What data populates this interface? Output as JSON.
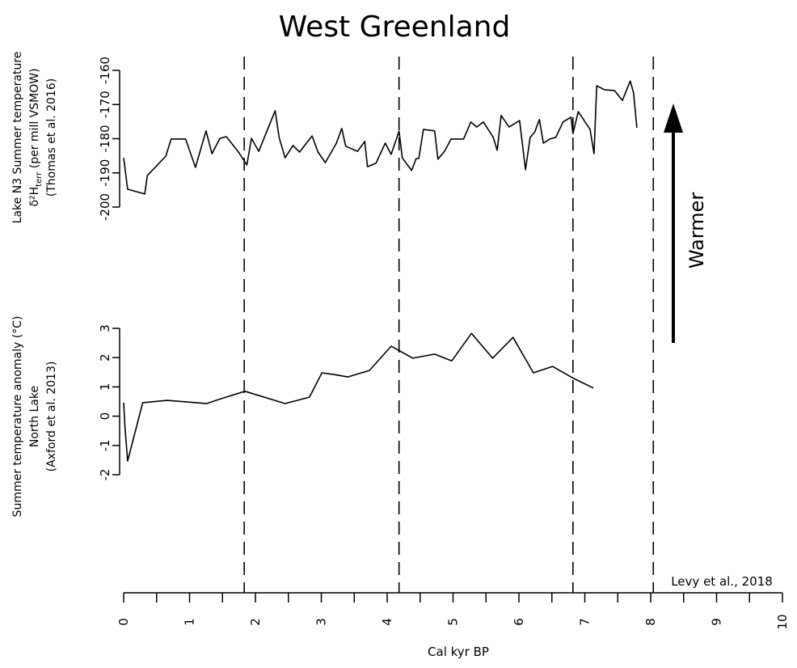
{
  "chart_data": {
    "type": "line",
    "title": "West Greenland",
    "xlabel": "Cal kyr BP",
    "xlim": [
      0,
      10
    ],
    "xticks": [
      0,
      1,
      2,
      3,
      4,
      5,
      6,
      7,
      8,
      9,
      10
    ],
    "xminor_ticks": [
      0.5,
      1.5,
      2.5,
      3.5,
      4.5,
      5.5,
      6.5,
      7.5,
      8.5,
      9.5
    ],
    "vlines": [
      1.83,
      4.18,
      6.82,
      8.04
    ],
    "annotations": [
      "Warmer",
      "Levy et al., 2018"
    ],
    "color": "#000000",
    "panels": [
      {
        "ylabel": [
          "Lake N3 Summer temperature",
          {
            "main": "δ²H",
            "sub": "terr",
            "rest": " (per mill VSMOW)"
          },
          "(Thomas et al. 2016)"
        ],
        "ylim": [
          -200,
          -160
        ],
        "yticks": [
          -200,
          -190,
          -180,
          -170,
          -160
        ],
        "x": [
          0,
          0.06,
          0.32,
          0.36,
          0.64,
          0.72,
          0.94,
          1.09,
          1.25,
          1.34,
          1.46,
          1.56,
          1.75,
          1.87,
          1.94,
          2.05,
          2.3,
          2.36,
          2.45,
          2.57,
          2.67,
          2.86,
          2.95,
          3.06,
          3.23,
          3.31,
          3.37,
          3.55,
          3.66,
          3.7,
          3.83,
          3.97,
          4.06,
          4.18,
          4.23,
          4.37,
          4.44,
          4.48,
          4.55,
          4.72,
          4.77,
          4.87,
          4.97,
          5.16,
          5.27,
          5.36,
          5.46,
          5.61,
          5.67,
          5.73,
          5.85,
          6.01,
          6.1,
          6.17,
          6.24,
          6.31,
          6.37,
          6.47,
          6.56,
          6.67,
          6.79,
          6.82,
          6.9,
          7.08,
          7.14,
          7.18,
          7.3,
          7.45,
          7.57,
          7.69,
          7.74,
          7.79
        ],
        "values": [
          -185.6,
          -194.8,
          -196.2,
          -190.8,
          -185.1,
          -180.1,
          -180.1,
          -188.4,
          -177.7,
          -184.4,
          -179.9,
          -179.4,
          -184.1,
          -187.7,
          -179.9,
          -183.7,
          -171.8,
          -179.6,
          -185.6,
          -182.0,
          -183.9,
          -179.2,
          -183.9,
          -187.0,
          -181.3,
          -177.0,
          -182.2,
          -183.7,
          -180.8,
          -188.2,
          -187.2,
          -181.3,
          -184.6,
          -177.8,
          -185.6,
          -189.3,
          -185.8,
          -185.8,
          -177.3,
          -177.7,
          -186.0,
          -183.7,
          -180.1,
          -180.1,
          -175.1,
          -176.6,
          -175.1,
          -179.6,
          -183.4,
          -173.2,
          -176.6,
          -174.7,
          -189.1,
          -179.6,
          -178.0,
          -174.4,
          -181.3,
          -180.1,
          -179.6,
          -175.1,
          -173.7,
          -178.5,
          -172.1,
          -177.3,
          -184.4,
          -164.5,
          -165.7,
          -165.9,
          -168.8,
          -163.1,
          -166.6,
          -176.8
        ]
      },
      {
        "ylabel": [
          "Summer temperature anomaly (°C)",
          "North Lake",
          "(Axford et al. 2013)"
        ],
        "ylim": [
          -2,
          3
        ],
        "yticks": [
          -2,
          -1,
          0,
          1,
          2,
          3
        ],
        "x": [
          0,
          0.02,
          0.06,
          0.29,
          0.66,
          1.26,
          1.44,
          1.84,
          2.45,
          2.82,
          3.01,
          3.2,
          3.4,
          3.73,
          4.06,
          4.39,
          4.72,
          4.98,
          5.28,
          5.6,
          5.91,
          6.22,
          6.51,
          6.83,
          7.13
        ],
        "values": [
          0.46,
          -0.37,
          -1.53,
          0.46,
          0.54,
          0.43,
          0.57,
          0.85,
          0.43,
          0.65,
          1.48,
          1.42,
          1.34,
          1.56,
          2.39,
          1.98,
          2.12,
          1.89,
          2.83,
          1.98,
          2.69,
          1.48,
          1.7,
          1.29,
          0.96
        ]
      }
    ]
  }
}
